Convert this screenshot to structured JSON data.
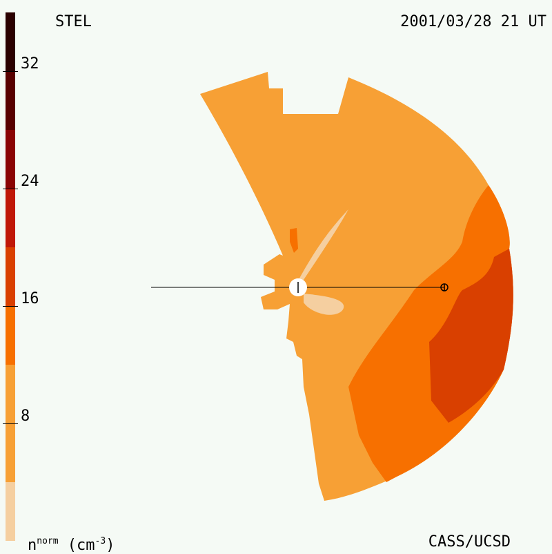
{
  "header": {
    "station": "STEL",
    "timestamp": "2001/03/28 21 UT"
  },
  "footer": {
    "credit": "CASS/UCSD",
    "units_base": "n",
    "units_sup": "norm",
    "units_open": " (cm",
    "units_exp": "-3",
    "units_close": ")"
  },
  "colorbar": {
    "min": 0,
    "max": 36,
    "tick_labels": [
      "8",
      "16",
      "24",
      "32"
    ],
    "tick_values": [
      8,
      16,
      24,
      32
    ],
    "levels": [
      {
        "from": 0,
        "to": 4,
        "color": "#f5cfa0"
      },
      {
        "from": 4,
        "to": 12,
        "color": "#f7a035"
      },
      {
        "from": 12,
        "to": 16,
        "color": "#f77000"
      },
      {
        "from": 16,
        "to": 20,
        "color": "#d94000"
      },
      {
        "from": 20,
        "to": 24,
        "color": "#c01808"
      },
      {
        "from": 24,
        "to": 28,
        "color": "#8a0404"
      },
      {
        "from": 28,
        "to": 32,
        "color": "#580000"
      },
      {
        "from": 32,
        "to": 36,
        "color": "#2a0000"
      }
    ]
  },
  "map_colors": {
    "light": "#f5cfa0",
    "base": "#f7a035",
    "mid": "#f77000",
    "high": "#d94000",
    "sun": "#ffffff",
    "line": "#000000"
  }
}
